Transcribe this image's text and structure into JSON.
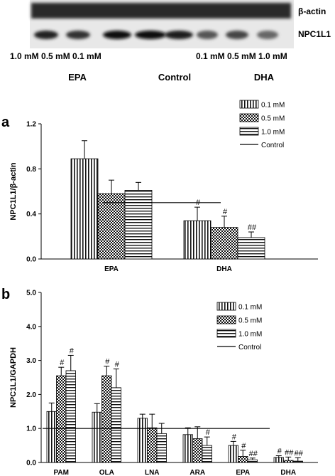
{
  "blot": {
    "rows": [
      "β-actin",
      "NPC1L1"
    ],
    "lane_labels_left": "1.0 mM 0.5 mM 0.1 mM",
    "lane_labels_right": "0.1 mM 0.5 mM 1.0 mM",
    "groups": [
      "EPA",
      "Control",
      "DHA"
    ]
  },
  "panel_letters": [
    "a",
    "b"
  ],
  "chart_data": [
    {
      "type": "bar",
      "panel": "a",
      "ylabel": "NPC1L1/β-actin",
      "xlabel": "",
      "categories": [
        "EPA",
        "DHA"
      ],
      "ylim": [
        0,
        1.2
      ],
      "yticks": [
        "0.0",
        "0.4",
        "0.8",
        "1.2"
      ],
      "control_level": 0.5,
      "control_label": "Control",
      "legend_position": "top-right",
      "series": [
        {
          "name": "0.1 mM",
          "pattern": "vertical",
          "values": [
            0.89,
            0.34
          ],
          "errors": [
            0.16,
            0.12
          ],
          "annotations": [
            "",
            "#"
          ]
        },
        {
          "name": "0.5 mM",
          "pattern": "checker",
          "values": [
            0.58,
            0.28
          ],
          "errors": [
            0.12,
            0.1
          ],
          "annotations": [
            "",
            "#"
          ]
        },
        {
          "name": "1.0 mM",
          "pattern": "horizontal",
          "values": [
            0.61,
            0.19
          ],
          "errors": [
            0.07,
            0.05
          ],
          "annotations": [
            "",
            "##"
          ]
        }
      ]
    },
    {
      "type": "bar",
      "panel": "b",
      "ylabel": "NPC1L1/GAPDH",
      "xlabel": "",
      "categories": [
        "PAM",
        "OLA",
        "LNA",
        "ARA",
        "EPA",
        "DHA"
      ],
      "ylim": [
        0,
        5.0
      ],
      "yticks": [
        "0.0",
        "1.0",
        "2.0",
        "3.0",
        "4.0",
        "5.0"
      ],
      "control_level": 1.0,
      "control_label": "Control",
      "legend_position": "top-right",
      "series": [
        {
          "name": "0.1 mM",
          "pattern": "vertical",
          "values": [
            1.5,
            1.48,
            1.3,
            0.82,
            0.5,
            0.15
          ],
          "errors": [
            0.25,
            0.25,
            0.12,
            0.2,
            0.12,
            0.05
          ],
          "annotations": [
            "",
            "",
            "",
            "",
            "#",
            "#"
          ]
        },
        {
          "name": "0.5 mM",
          "pattern": "checker",
          "values": [
            2.55,
            2.55,
            1.02,
            0.7,
            0.18,
            0.06
          ],
          "errors": [
            0.25,
            0.28,
            0.4,
            0.35,
            0.18,
            0.1
          ],
          "annotations": [
            "#",
            "#",
            "",
            "",
            "#",
            "##"
          ]
        },
        {
          "name": "1.0 mM",
          "pattern": "horizontal",
          "values": [
            2.7,
            2.2,
            0.85,
            0.5,
            0.08,
            0.04
          ],
          "errors": [
            0.45,
            0.55,
            0.3,
            0.25,
            0.05,
            0.1
          ],
          "annotations": [
            "#",
            "#",
            "",
            "#",
            "##",
            "##"
          ]
        }
      ]
    }
  ]
}
